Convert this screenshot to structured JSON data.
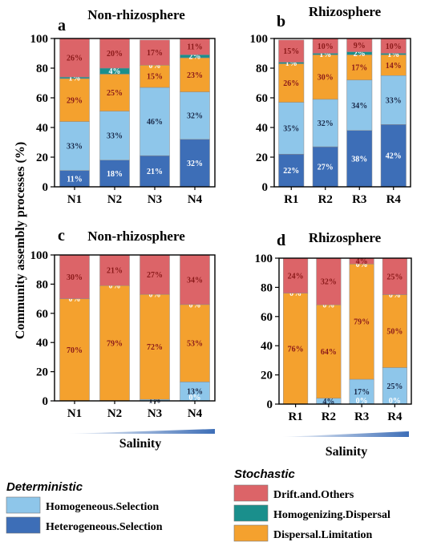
{
  "ylabel": "Community assembly processes (%)",
  "salinity_label": "Salinity",
  "colors": {
    "Heterogeneous.Selection": "#3d6eb7",
    "Homogeneous.Selection": "#8ec6ea",
    "Dispersal.Limitation": "#f4a12e",
    "Homogenizing.Dispersal": "#1a8f8c",
    "Drift.and.Others": "#dc6468"
  },
  "legend": {
    "deterministic_title": "Deterministic",
    "stochastic_title": "Stochastic",
    "deterministic_items": [
      "Homogeneous.Selection",
      "Heterogeneous.Selection"
    ],
    "stochastic_items": [
      "Drift.and.Others",
      "Homogenizing.Dispersal",
      "Dispersal.Limitation"
    ]
  },
  "chart_data": [
    {
      "type": "bar",
      "letter": "a",
      "title": "Non-rhizosphere",
      "categories": [
        "N1",
        "N2",
        "N3",
        "N4"
      ],
      "ylim": [
        0,
        100
      ],
      "yticks": [
        0,
        20,
        40,
        60,
        80,
        100
      ],
      "series": [
        {
          "name": "Heterogeneous.Selection",
          "values": [
            11,
            18,
            21,
            32
          ],
          "labels": [
            "11%",
            "18%",
            "21%",
            "32%"
          ]
        },
        {
          "name": "Homogeneous.Selection",
          "values": [
            33,
            33,
            46,
            32
          ],
          "labels": [
            "33%",
            "33%",
            "46%",
            "32%"
          ]
        },
        {
          "name": "Dispersal.Limitation",
          "values": [
            29,
            25,
            15,
            23
          ],
          "labels": [
            "29%",
            "25%",
            "15%",
            "23%"
          ]
        },
        {
          "name": "Homogenizing.Dispersal",
          "values": [
            1,
            4,
            0,
            2
          ],
          "labels": [
            "1%",
            "4%",
            "0%",
            "2%"
          ]
        },
        {
          "name": "Drift.and.Others",
          "values": [
            26,
            20,
            17,
            11
          ],
          "labels": [
            "26%",
            "20%",
            "17%",
            "11%"
          ]
        }
      ]
    },
    {
      "type": "bar",
      "letter": "b",
      "title": "Rhizosphere",
      "categories": [
        "R1",
        "R2",
        "R3",
        "R4"
      ],
      "ylim": [
        0,
        100
      ],
      "yticks": [
        0,
        20,
        40,
        60,
        80,
        100
      ],
      "series": [
        {
          "name": "Heterogeneous.Selection",
          "values": [
            22,
            27,
            38,
            42
          ],
          "labels": [
            "22%",
            "27%",
            "38%",
            "42%"
          ]
        },
        {
          "name": "Homogeneous.Selection",
          "values": [
            35,
            32,
            34,
            33
          ],
          "labels": [
            "35%",
            "32%",
            "34%",
            "33%"
          ]
        },
        {
          "name": "Dispersal.Limitation",
          "values": [
            26,
            30,
            17,
            14
          ],
          "labels": [
            "26%",
            "30%",
            "17%",
            "14%"
          ]
        },
        {
          "name": "Homogenizing.Dispersal",
          "values": [
            1,
            1,
            2,
            1
          ],
          "labels": [
            "1%",
            "1%",
            "2%",
            "1%"
          ]
        },
        {
          "name": "Drift.and.Others",
          "values": [
            15,
            10,
            9,
            10
          ],
          "labels": [
            "15%",
            "10%",
            "9%",
            "10%"
          ]
        }
      ]
    },
    {
      "type": "bar",
      "letter": "c",
      "title": "Non-rhizosphere",
      "categories": [
        "N1",
        "N2",
        "N3",
        "N4"
      ],
      "ylim": [
        0,
        100
      ],
      "yticks": [
        0,
        20,
        40,
        60,
        80,
        100
      ],
      "series": [
        {
          "name": "Heterogeneous.Selection",
          "values": [
            0,
            0,
            0,
            0
          ],
          "labels": [
            "",
            "",
            "",
            ""
          ]
        },
        {
          "name": "Homogeneous.Selection",
          "values": [
            0,
            0,
            1,
            13
          ],
          "labels": [
            "0%",
            "0%",
            "1%",
            "13%"
          ]
        },
        {
          "name": "Dispersal.Limitation",
          "values": [
            70,
            79,
            72,
            53
          ],
          "labels": [
            "70%",
            "79%",
            "72%",
            "53%"
          ]
        },
        {
          "name": "Homogenizing.Dispersal",
          "values": [
            0,
            0,
            0,
            0
          ],
          "labels": [
            "0%",
            "0%",
            "0%",
            "0%"
          ]
        },
        {
          "name": "Drift.and.Others",
          "values": [
            30,
            21,
            27,
            34
          ],
          "labels": [
            "30%",
            "21%",
            "27%",
            "34%"
          ]
        }
      ],
      "extra_labels": [
        {
          "cat": 3,
          "text": "0%",
          "at": 0
        }
      ]
    },
    {
      "type": "bar",
      "letter": "d",
      "title": "Rhizosphere",
      "categories": [
        "R1",
        "R2",
        "R3",
        "R4"
      ],
      "ylim": [
        0,
        100
      ],
      "yticks": [
        0,
        20,
        40,
        60,
        80,
        100
      ],
      "series": [
        {
          "name": "Heterogeneous.Selection",
          "values": [
            0,
            0,
            0,
            0
          ],
          "labels": [
            "",
            "",
            "",
            ""
          ]
        },
        {
          "name": "Homogeneous.Selection",
          "values": [
            0,
            4,
            17,
            25
          ],
          "labels": [
            "0%",
            "4%",
            "17%",
            "25%"
          ]
        },
        {
          "name": "Dispersal.Limitation",
          "values": [
            76,
            64,
            79,
            50
          ],
          "labels": [
            "76%",
            "64%",
            "79%",
            "50%"
          ]
        },
        {
          "name": "Homogenizing.Dispersal",
          "values": [
            0,
            0,
            0,
            0
          ],
          "labels": [
            "0%",
            "0%",
            "0%",
            "0%"
          ]
        },
        {
          "name": "Drift.and.Others",
          "values": [
            24,
            32,
            4,
            25
          ],
          "labels": [
            "24%",
            "32%",
            "4%",
            "25%"
          ]
        }
      ],
      "extra_labels": [
        {
          "cat": 2,
          "text": "0%",
          "at": 0
        },
        {
          "cat": 3,
          "text": "0%",
          "at": 0
        }
      ]
    }
  ]
}
